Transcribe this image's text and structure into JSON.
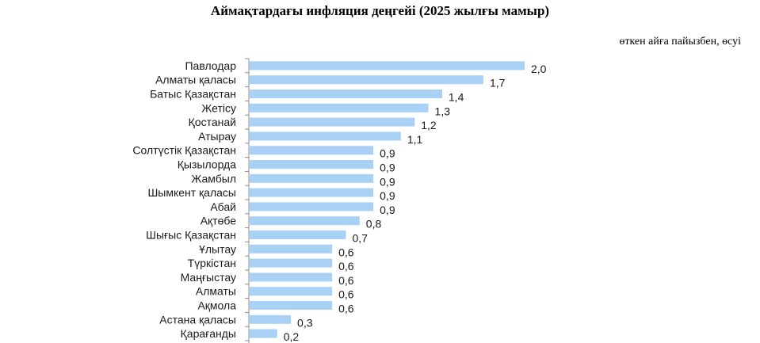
{
  "chart_data": {
    "type": "bar",
    "orientation": "horizontal",
    "title": "Аймақтардағы инфляция деңгейі (2025 жылғы мамыр)",
    "subtitle": "өткен айға пайызбен, өсуі",
    "categories": [
      "Павлодар",
      "Алматы қаласы",
      "Батыс Қазақстан",
      "Жетісу",
      "Қостанай",
      "Атырау",
      "Солтүстік Қазақстан",
      "Қызылорда",
      "Жамбыл",
      "Шымкент қаласы",
      "Абай",
      "Ақтөбе",
      "Шығыс Қазақстан",
      "Ұлытау",
      "Түркістан",
      "Маңғыстау",
      "Алматы",
      "Ақмола",
      "Астана қаласы",
      "Қарағанды"
    ],
    "values": [
      2.0,
      1.7,
      1.4,
      1.3,
      1.2,
      1.1,
      0.9,
      0.9,
      0.9,
      0.9,
      0.9,
      0.8,
      0.7,
      0.6,
      0.6,
      0.6,
      0.6,
      0.6,
      0.3,
      0.2
    ],
    "value_labels": [
      "2,0",
      "1,7",
      "1,4",
      "1,3",
      "1,2",
      "1,1",
      "0,9",
      "0,9",
      "0,9",
      "0,9",
      "0,9",
      "0,8",
      "0,7",
      "0,6",
      "0,6",
      "0,6",
      "0,6",
      "0,6",
      "0,3",
      "0,2"
    ],
    "xlim": [
      0,
      2.0
    ],
    "grid": false,
    "legend": "none",
    "bar_color": "#a9d0f5"
  }
}
